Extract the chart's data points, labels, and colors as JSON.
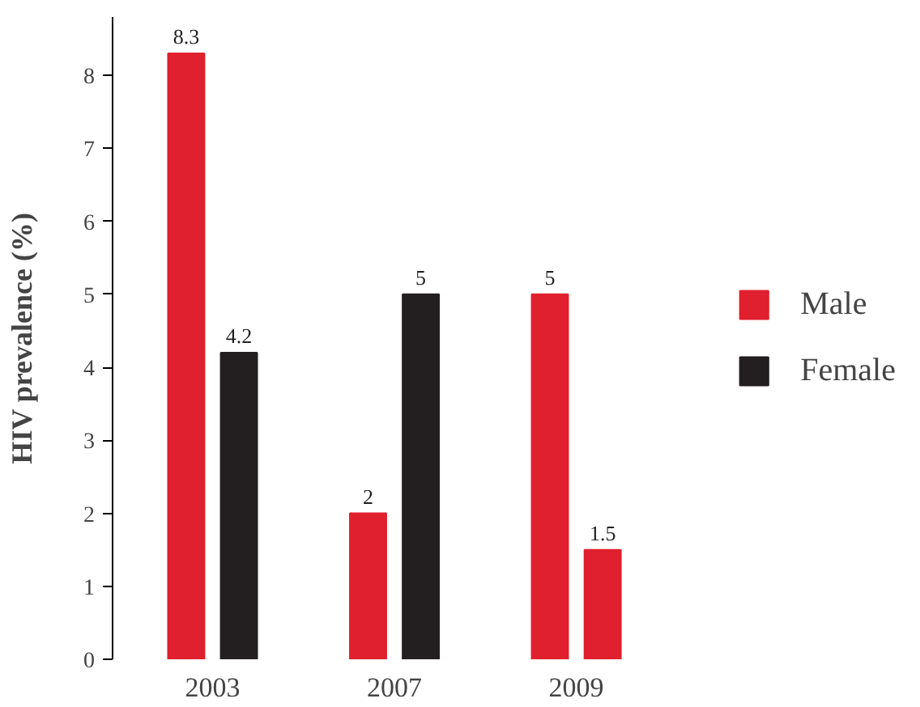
{
  "chart_data": {
    "type": "bar",
    "ylabel": "HIV prevalence (%)",
    "categories": [
      "2003",
      "2007",
      "2009"
    ],
    "series": [
      {
        "name": "Male",
        "color": "#e0202e",
        "values": [
          8.3,
          2,
          5
        ]
      },
      {
        "name": "Female",
        "color": "#231f20",
        "colors": [
          "#231f20",
          "#231f20",
          "#e0202e"
        ],
        "values": [
          4.2,
          5,
          1.5
        ]
      }
    ],
    "ylim": [
      0,
      8.8
    ],
    "yticks": [
      0,
      1,
      2,
      3,
      4,
      5,
      6,
      7,
      8
    ],
    "grid": false,
    "legend": "right",
    "data_labels": true
  }
}
